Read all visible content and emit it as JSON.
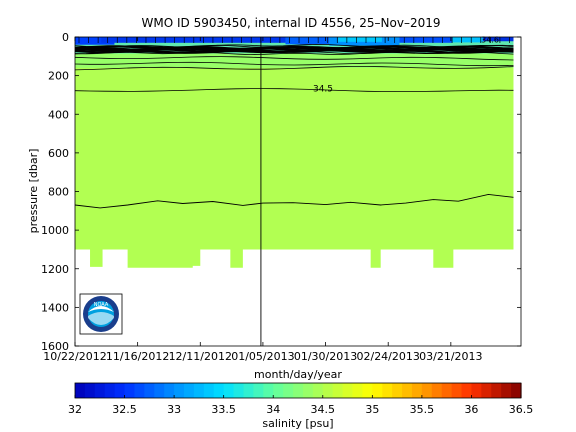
{
  "chart_data": [
    {
      "type": "heatmap",
      "title": "WMO ID 5903450, internal ID 4556, 25–Nov–2019",
      "xlabel": "month/day/year",
      "ylabel": "pressure [dbar]",
      "x_ticks": [
        "10/22/2012",
        "11/16/2012",
        "12/11/2012",
        "01/05/2013",
        "01/30/2013",
        "02/24/2013",
        "03/21/2013"
      ],
      "x_range": [
        "10/22/2012",
        "04/18/2013"
      ],
      "y_ticks": [
        0,
        200,
        400,
        600,
        800,
        1000,
        1200,
        1400,
        1600
      ],
      "ylim": [
        0,
        1600
      ],
      "y_reversed": true,
      "grid": false,
      "contour_labels": [
        "34.5",
        "34.6"
      ],
      "marker_date": "01/05/2013",
      "profile_bottoms": [
        {
          "start": "10/22/2012",
          "end": "10/28/2012",
          "pressure": 1100
        },
        {
          "start": "10/28/2012",
          "end": "11/02/2012",
          "pressure": 1190
        },
        {
          "start": "11/02/2012",
          "end": "11/12/2012",
          "pressure": 1100
        },
        {
          "start": "11/12/2012",
          "end": "12/08/2012",
          "pressure": 1195
        },
        {
          "start": "12/08/2012",
          "end": "12/11/2012",
          "pressure": 1185
        },
        {
          "start": "12/11/2012",
          "end": "12/23/2012",
          "pressure": 1100
        },
        {
          "start": "12/23/2012",
          "end": "12/28/2012",
          "pressure": 1195
        },
        {
          "start": "12/28/2012",
          "end": "02/17/2013",
          "pressure": 1100
        },
        {
          "start": "02/17/2013",
          "end": "02/21/2013",
          "pressure": 1195
        },
        {
          "start": "02/21/2013",
          "end": "03/14/2013",
          "pressure": 1100
        },
        {
          "start": "03/14/2013",
          "end": "03/22/2013",
          "pressure": 1195
        },
        {
          "start": "03/22/2013",
          "end": "04/15/2013",
          "pressure": 1100
        }
      ],
      "deep_isohaline": {
        "dates": [
          "10/22/2012",
          "11/01/2012",
          "11/12/2012",
          "11/24/2012",
          "12/04/2012",
          "12/16/2012",
          "12/28/2012",
          "01/05/2013",
          "01/17/2013",
          "01/30/2013",
          "02/09/2013",
          "02/21/2013",
          "03/03/2013",
          "03/14/2013",
          "03/24/2013",
          "04/05/2013",
          "04/15/2013"
        ],
        "pressure": [
          870,
          885,
          870,
          848,
          862,
          852,
          872,
          860,
          858,
          868,
          856,
          870,
          860,
          842,
          850,
          815,
          830
        ]
      }
    },
    {
      "type": "colorbar",
      "label": "salinity [psu]",
      "ticks": [
        "32",
        "32.5",
        "33",
        "33.5",
        "34",
        "34.5",
        "35",
        "35.5",
        "36",
        "36.5"
      ],
      "range": [
        32,
        36.5
      ],
      "colors": [
        "#0000b8",
        "#0030ff",
        "#0090ff",
        "#00e0ff",
        "#60ffa0",
        "#b0ff50",
        "#ffff00",
        "#ffa000",
        "#ff3000",
        "#800000"
      ]
    }
  ],
  "logo": {
    "text": "NOAA",
    "colors": {
      "ring": "#1a3e8c",
      "sky": "#00a0e0",
      "gull": "#ffffff"
    }
  }
}
